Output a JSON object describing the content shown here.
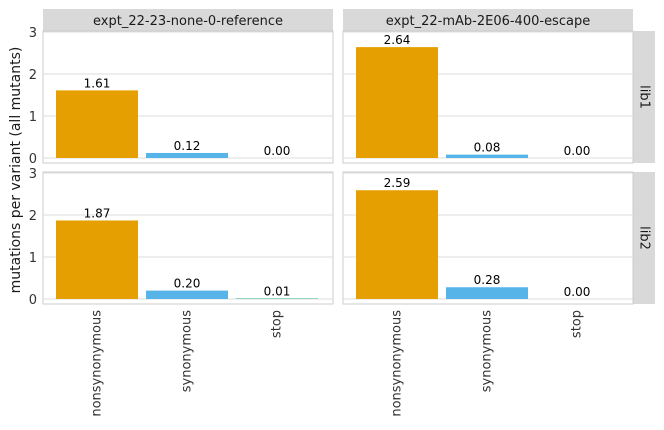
{
  "chart_data": {
    "type": "bar",
    "ylabel": "mutations per variant (all mutants)",
    "categories": [
      "nonsynonymous",
      "synonymous",
      "stop"
    ],
    "category_colors": [
      "#E69F00",
      "#56B4E9",
      "#009E73"
    ],
    "ylim": [
      0,
      3
    ],
    "yticks": [
      "0",
      "1",
      "2",
      "3"
    ],
    "columns": [
      "expt_22-23-none-0-reference",
      "expt_22-mAb-2E06-400-escape"
    ],
    "rows": [
      "lib1",
      "lib2"
    ],
    "panels": [
      {
        "column": "expt_22-23-none-0-reference",
        "row": "lib1",
        "values": [
          1.61,
          0.12,
          0.0
        ],
        "labels": [
          "1.61",
          "0.12",
          "0.00"
        ]
      },
      {
        "column": "expt_22-mAb-2E06-400-escape",
        "row": "lib1",
        "values": [
          2.64,
          0.08,
          0.0
        ],
        "labels": [
          "2.64",
          "0.08",
          "0.00"
        ]
      },
      {
        "column": "expt_22-23-none-0-reference",
        "row": "lib2",
        "values": [
          1.87,
          0.2,
          0.01
        ],
        "labels": [
          "1.87",
          "0.20",
          "0.01"
        ]
      },
      {
        "column": "expt_22-mAb-2E06-400-escape",
        "row": "lib2",
        "values": [
          2.59,
          0.28,
          0.0
        ],
        "labels": [
          "2.59",
          "0.28",
          "0.00"
        ]
      }
    ],
    "grid": true,
    "strip_color": "#d9d9d9",
    "gridline_color": "#dedede",
    "panel_border_color": "#cccccc"
  }
}
